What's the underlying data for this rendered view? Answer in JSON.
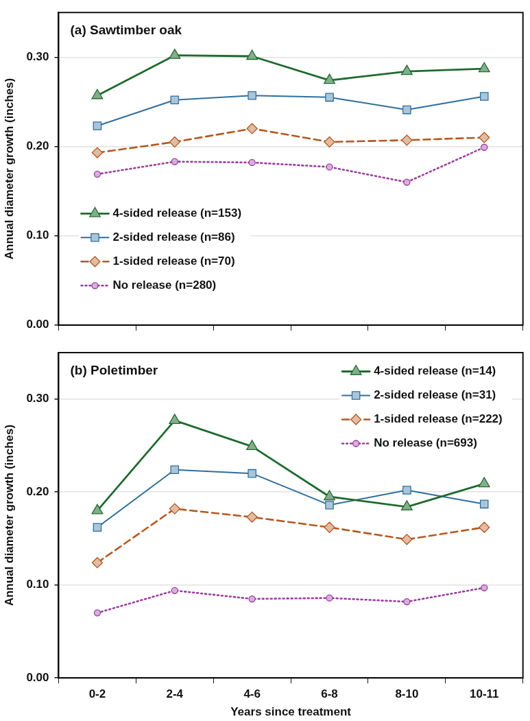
{
  "chart_data": [
    {
      "type": "line",
      "title": "(a) Sawtimber oak",
      "ylabel": "Annual diameter growth (inches)",
      "categories": [
        null,
        null,
        null,
        null,
        null,
        null
      ],
      "series": [
        {
          "name": "4-sided release (n=153)",
          "color": "#1e6b2e",
          "marker": "triangle",
          "line_style": "solid",
          "values": [
            0.257,
            0.302,
            0.301,
            0.274,
            0.284,
            0.287
          ]
        },
        {
          "name": "2-sided release (n=86)",
          "color": "#2e6e9e",
          "marker": "square",
          "line_style": "solid",
          "values": [
            0.223,
            0.252,
            0.257,
            0.255,
            0.241,
            0.256
          ]
        },
        {
          "name": "1-sided release (n=70)",
          "color": "#b5571f",
          "marker": "diamond",
          "line_style": "dashed",
          "values": [
            0.193,
            0.205,
            0.22,
            0.205,
            0.207,
            0.21
          ]
        },
        {
          "name": "No release (n=280)",
          "color": "#9b3aa0",
          "marker": "circle",
          "line_style": "dotted",
          "values": [
            0.169,
            0.183,
            0.182,
            0.177,
            0.16,
            0.199
          ]
        }
      ],
      "ylim": [
        0,
        0.35
      ],
      "yticks": [
        {
          "value": 0,
          "label": "0.00"
        },
        {
          "value": 0.1,
          "label": "0.10"
        },
        {
          "value": 0.2,
          "label": "0.20"
        },
        {
          "value": 0.3,
          "label": "0.30"
        }
      ],
      "grid": "y",
      "legend": "bottom left",
      "tick_labels": "y"
    },
    {
      "type": "line",
      "title": "(b) Poletimber",
      "ylabel": "Annual diameter growth (inches)",
      "xlabel": "Years since treatment",
      "categories": [
        "0-2",
        "2-4",
        "4-6",
        "6-8",
        "8-10",
        "10-11"
      ],
      "series": [
        {
          "name": "4-sided release (n=14)",
          "color": "#1e6b2e",
          "marker": "triangle",
          "line_style": "solid",
          "values": [
            0.18,
            0.277,
            0.249,
            0.195,
            0.184,
            0.209
          ]
        },
        {
          "name": "2-sided release (n=31)",
          "color": "#2e6e9e",
          "marker": "square",
          "line_style": "solid",
          "values": [
            0.162,
            0.224,
            0.22,
            0.186,
            0.202,
            0.187
          ]
        },
        {
          "name": "1-sided release (n=222)",
          "color": "#b5571f",
          "marker": "diamond",
          "line_style": "dashed",
          "values": [
            0.124,
            0.182,
            0.173,
            0.162,
            0.149,
            0.162
          ]
        },
        {
          "name": "No release (n=693)",
          "color": "#9b3aa0",
          "marker": "circle",
          "line_style": "dotted",
          "values": [
            0.07,
            0.094,
            0.085,
            0.086,
            0.082,
            0.097
          ]
        }
      ],
      "ylim": [
        0,
        0.35
      ],
      "yticks": [
        {
          "value": 0,
          "label": "0.00"
        },
        {
          "value": 0.1,
          "label": "0.10"
        },
        {
          "value": 0.2,
          "label": "0.20"
        },
        {
          "value": 0.3,
          "label": "0.30"
        }
      ],
      "grid": "y",
      "legend": "top right"
    }
  ]
}
